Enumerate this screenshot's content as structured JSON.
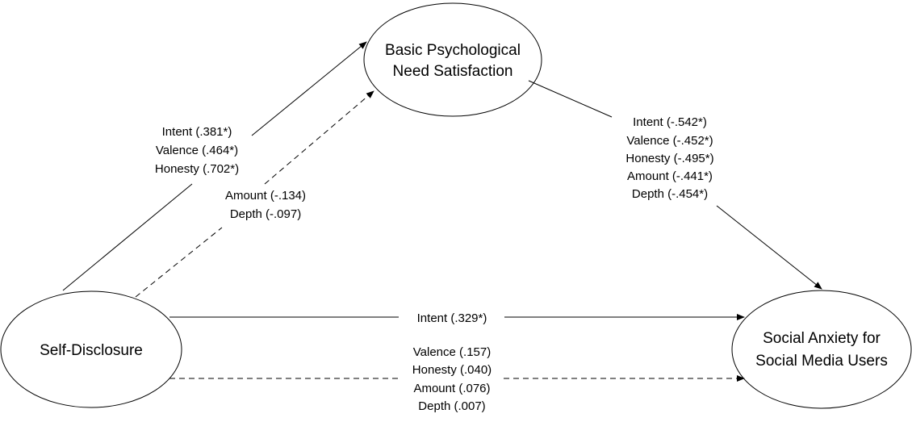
{
  "nodes": {
    "self_disclosure": {
      "label": "Self-Disclosure"
    },
    "bpns": {
      "line1": "Basic Psychological",
      "line2": "Need Satisfaction"
    },
    "social_anxiety": {
      "line1": "Social Anxiety for",
      "line2": "Social Media Users"
    }
  },
  "paths": {
    "sd_to_bpns_significant": [
      "Intent (.381*)",
      "Valence (.464*)",
      "Honesty (.702*)"
    ],
    "sd_to_bpns_nonsignificant": [
      "Amount (-.134)",
      "Depth (-.097)"
    ],
    "bpns_to_sa": [
      "Intent (-.542*)",
      "Valence (-.452*)",
      "Honesty (-.495*)",
      "Amount (-.441*)",
      "Depth (-.454*)"
    ],
    "sd_to_sa_significant": [
      "Intent (.329*)"
    ],
    "sd_to_sa_nonsignificant": [
      "Valence (.157)",
      "Honesty (.040)",
      "Amount (.076)",
      "Depth (.007)"
    ]
  }
}
